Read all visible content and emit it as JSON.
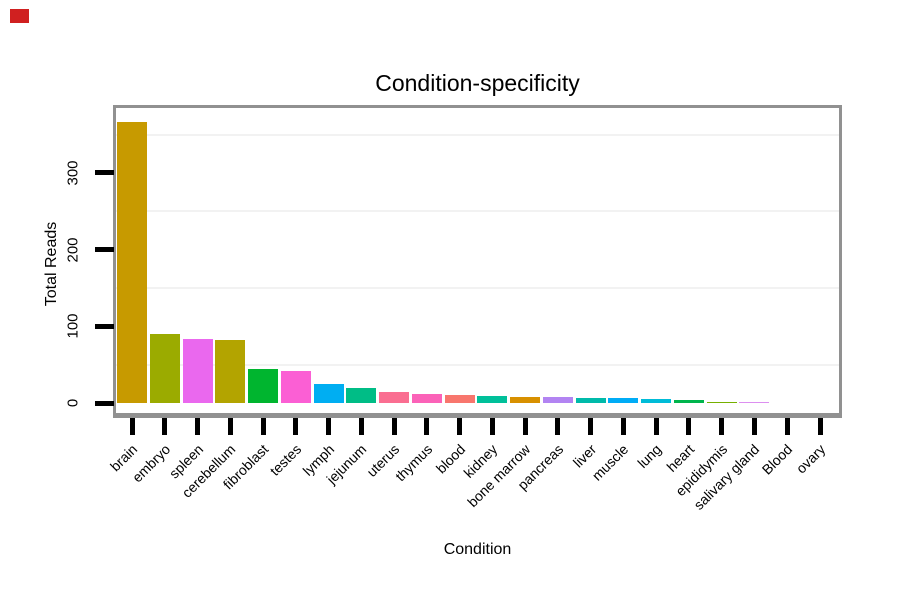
{
  "corner_marker": {
    "color": "#d02020"
  },
  "chart_data": {
    "type": "bar",
    "title": "Condition-specificity",
    "xlabel": "Condition",
    "ylabel": "Total Reads",
    "categories": [
      "brain",
      "embryo",
      "spleen",
      "cerebellum",
      "fibroblast",
      "testes",
      "lymph",
      "jejunum",
      "uterus",
      "thymus",
      "blood",
      "kidney",
      "bone marrow",
      "pancreas",
      "liver",
      "muscle",
      "lung",
      "heart",
      "epididymis",
      "salivary gland",
      "Blood",
      "ovary"
    ],
    "values": [
      366,
      90,
      84,
      82,
      44,
      42,
      25,
      19,
      14,
      12,
      11,
      9,
      8,
      8,
      6,
      6,
      5,
      4,
      2,
      2,
      0,
      0
    ],
    "bar_colors": [
      "#C79A00",
      "#9BAB00",
      "#EA68EE",
      "#B3A400",
      "#00B52F",
      "#FB5FD4",
      "#00AEF2",
      "#00BD86",
      "#FA6E91",
      "#FB62B8",
      "#F8766D",
      "#00C09A",
      "#D89000",
      "#B284F2",
      "#00BAAA",
      "#00ACF6",
      "#00BCD8",
      "#00B54D",
      "#76B000",
      "#DC8FF0",
      "#F8766D",
      "#FB61D7"
    ],
    "yticks": [
      0,
      100,
      200,
      300
    ],
    "minor_gridlines": [
      50,
      150,
      250,
      350
    ],
    "ylim": [
      0,
      385
    ],
    "x_label_rotation_deg": 45,
    "y_label_rotation_deg": 90,
    "grid": "horizontal minor gridlines only, very light gray",
    "legend": "none",
    "sort": "descending by value",
    "panel_border_color": "#919191",
    "tick_color": "#000000",
    "background_color": "#ffffff"
  }
}
